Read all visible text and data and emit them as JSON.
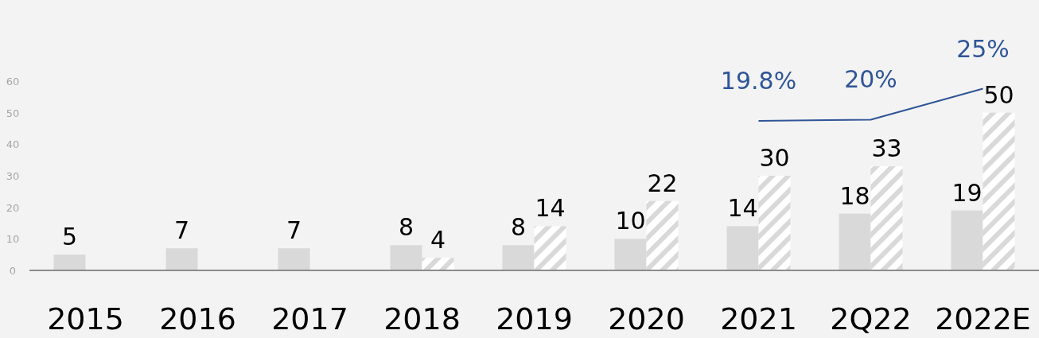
{
  "chart_data": {
    "type": "bar",
    "categories": [
      "2015",
      "2016",
      "2017",
      "2018",
      "2019",
      "2020",
      "2021",
      "2Q22",
      "2022E"
    ],
    "series": [
      {
        "color": "#d9d9d9",
        "values": [
          5,
          7,
          7,
          8,
          8,
          10,
          14,
          18,
          19
        ]
      },
      {
        "color": "#d9d9d9",
        "values": [
          null,
          null,
          null,
          4,
          14,
          22,
          30,
          33,
          50
        ]
      },
      {
        "type": "line",
        "axis": "y2",
        "color": "#2f5597",
        "values": [
          null,
          null,
          null,
          null,
          null,
          null,
          19.8,
          20,
          25
        ],
        "value_labels": [
          null,
          null,
          null,
          null,
          null,
          null,
          "19.8%",
          "20%",
          "25%"
        ]
      }
    ],
    "ylim": [
      0,
      60
    ],
    "yticks": [
      0,
      10,
      20,
      30,
      40,
      50,
      60
    ],
    "data_labels": true
  }
}
